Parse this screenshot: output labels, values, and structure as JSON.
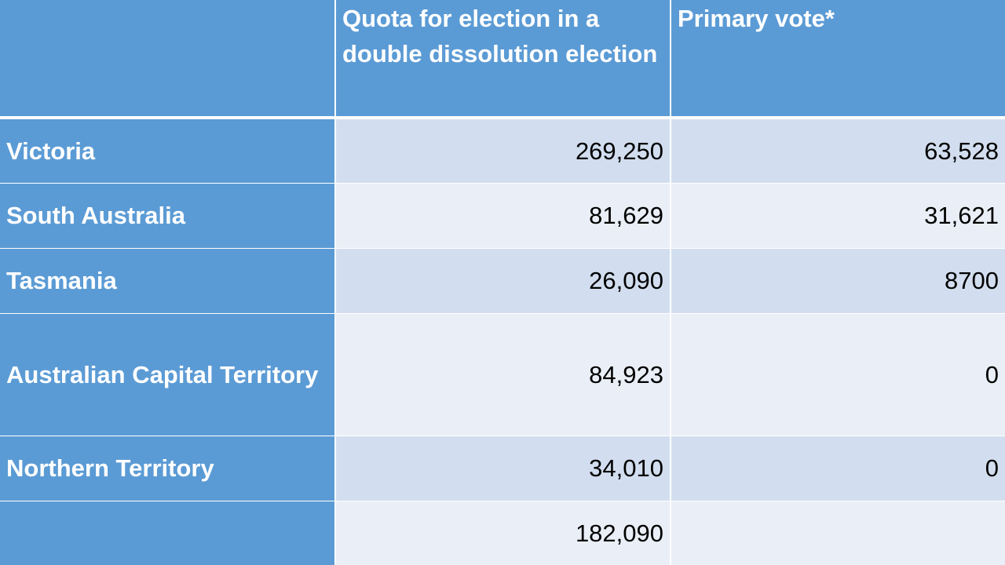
{
  "table": {
    "header": {
      "col0": "",
      "col1": "Quota for election in a double dissolution election",
      "col2": "Primary vote*"
    },
    "rows": [
      {
        "label": "Victoria",
        "quota": "269,250",
        "primary": "63,528"
      },
      {
        "label": "South Australia",
        "quota": "81,629",
        "primary": "31,621"
      },
      {
        "label": "Tasmania",
        "quota": "26,090",
        "primary": "8700"
      },
      {
        "label": "Australian Capital Territory",
        "quota": "84,923",
        "primary": "0"
      },
      {
        "label": "Northern Territory",
        "quota": "34,010",
        "primary": "0"
      },
      {
        "label": "",
        "quota": "182,090",
        "primary": ""
      }
    ]
  },
  "colors": {
    "header_bg": "#5b9bd5",
    "row_band_dark": "#d2deef",
    "row_band_light": "#eaeff7"
  }
}
